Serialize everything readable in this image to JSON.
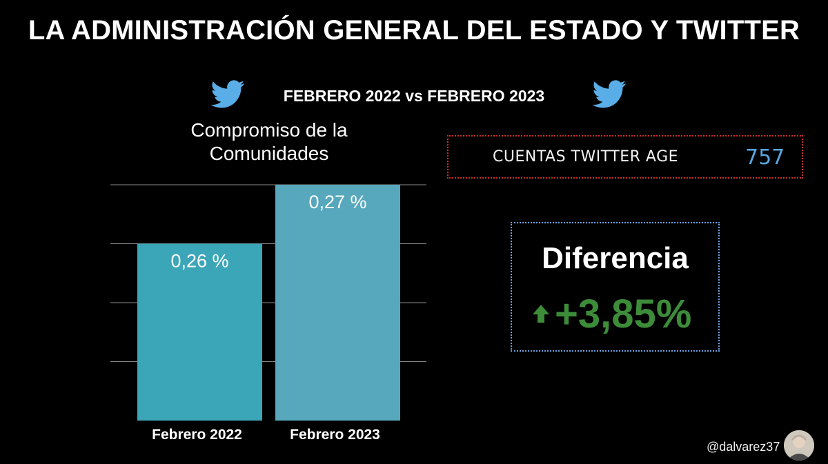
{
  "header": {
    "title": "LA ADMINISTRACIÓN GENERAL DEL ESTADO Y TWITTER",
    "subtitle": "FEBRERO 2022 vs FEBRERO 2023"
  },
  "icons": [
    "twitter-bird-icon",
    "up-arrow-icon"
  ],
  "colors": {
    "background": "#000000",
    "bar_2022": "#3ba6b8",
    "bar_2023": "#57a8bd",
    "metric_value": "#5aa6e0",
    "diff_value": "#3d8c3a",
    "twitter_blue": "#5aaee8"
  },
  "chart_data": {
    "type": "bar",
    "title": "Compromiso de la Comunidades",
    "categories": [
      "Febrero 2022",
      "Febrero 2023"
    ],
    "values": [
      0.26,
      0.27
    ],
    "value_labels": [
      "0,26 %",
      "0,27 %"
    ],
    "ylim": [
      0.23,
      0.27
    ],
    "grid": true,
    "xlabel": "",
    "ylabel": ""
  },
  "metric": {
    "label": "CUENTAS  TWITTER  AGE",
    "value": "757"
  },
  "difference": {
    "title": "Diferencia",
    "value": "+3,85%"
  },
  "footer": {
    "handle": "@dalvarez37"
  }
}
